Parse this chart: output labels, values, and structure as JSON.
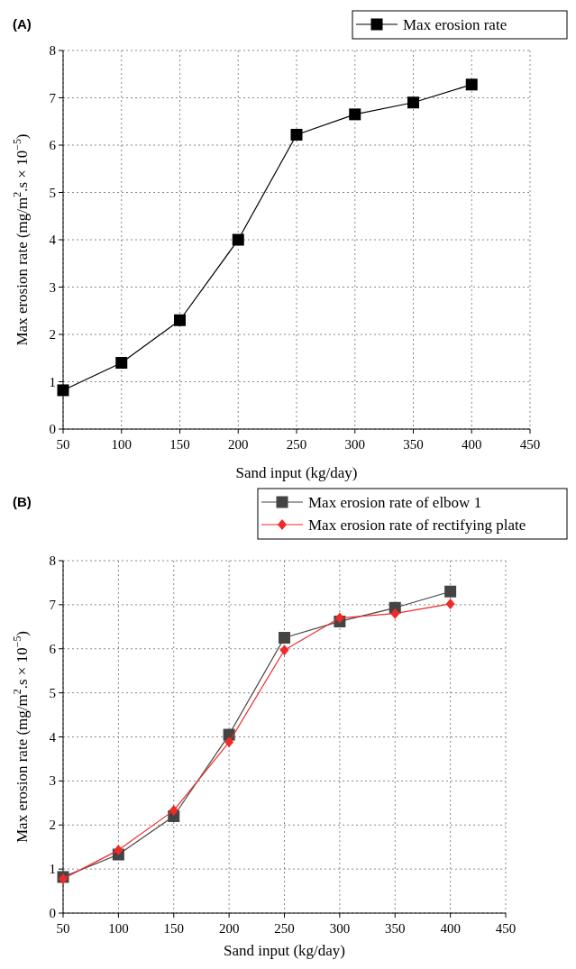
{
  "chart_data": [
    {
      "type": "line",
      "title": "(A)",
      "xlabel": "Sand input (kg/day)",
      "ylabel": "Max erosion rate (mg/m$^{2}$.s × 10$^{−5}$)",
      "x": [
        50,
        100,
        150,
        200,
        250,
        300,
        350,
        400
      ],
      "series": [
        {
          "name": "Max erosion rate",
          "color": "#000000",
          "marker": "square",
          "values": [
            0.82,
            1.4,
            2.3,
            4.0,
            6.22,
            6.65,
            6.9,
            7.28
          ]
        }
      ],
      "xlim": [
        50,
        450
      ],
      "xticks": [
        50,
        100,
        150,
        200,
        250,
        300,
        350,
        400,
        450
      ],
      "ylim": [
        0,
        8
      ],
      "yticks": [
        0,
        1,
        2,
        3,
        4,
        5,
        6,
        7,
        8
      ],
      "grid": true,
      "legend": "top right",
      "line_style": "solid"
    },
    {
      "type": "line",
      "title": "(B)",
      "xlabel": "Sand input (kg/day)",
      "ylabel": "Max erosion rate (mg/m$^{2}$.s × 10$^{−5}$)",
      "x": [
        50,
        100,
        150,
        200,
        250,
        300,
        350,
        400
      ],
      "series": [
        {
          "name": "Max erosion rate of elbow 1",
          "color": "#444444",
          "marker": "square",
          "values": [
            0.82,
            1.33,
            2.2,
            4.05,
            6.25,
            6.62,
            6.93,
            7.3
          ]
        },
        {
          "name": "Max erosion rate of rectifying plate",
          "color": "#ee2b2b",
          "marker": "diamond",
          "values": [
            0.78,
            1.43,
            2.33,
            3.88,
            5.97,
            6.7,
            6.8,
            7.02
          ]
        }
      ],
      "xlim": [
        50,
        450
      ],
      "xticks": [
        50,
        100,
        150,
        200,
        250,
        300,
        350,
        400,
        450
      ],
      "ylim": [
        0,
        8
      ],
      "yticks": [
        0,
        1,
        2,
        3,
        4,
        5,
        6,
        7,
        8
      ],
      "grid": true,
      "legend": "top right",
      "line_style": "solid"
    }
  ]
}
